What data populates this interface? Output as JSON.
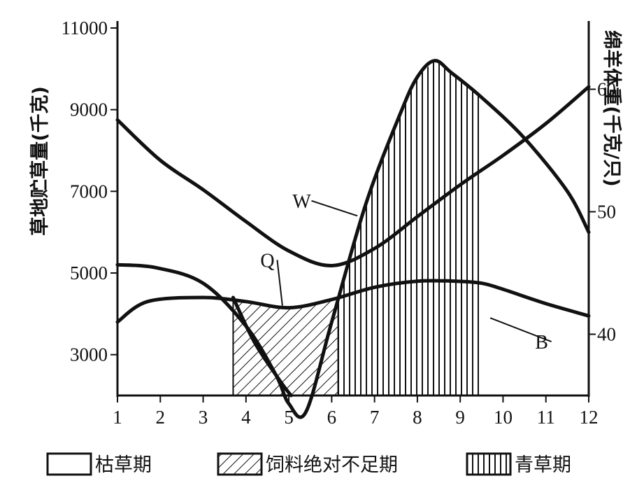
{
  "chart_data": {
    "type": "line",
    "ylabel_left": "草地贮草量(千克)",
    "ylabel_right": "绵羊体重(千克/只)",
    "x_ticks": [
      "1",
      "2",
      "3",
      "4",
      "5",
      "6",
      "7",
      "8",
      "9",
      "10",
      "11",
      "12"
    ],
    "x_range": [
      1,
      12
    ],
    "y_left_ticks": [
      "11000",
      "9000",
      "7000",
      "5000",
      "3000"
    ],
    "y_left_range": [
      2000,
      11000
    ],
    "y_right_ticks": [
      "60",
      "50",
      "40"
    ],
    "y_right_range": [
      35,
      65
    ],
    "series": [
      {
        "name": "W",
        "axis": "left",
        "x": [
          1,
          1.9,
          3,
          4,
          4.7,
          5.0,
          5.4,
          6.0,
          6.8,
          7.6,
          8.0,
          8.4,
          8.8,
          9.5,
          10.5,
          11.5,
          12
        ],
        "y": [
          5200,
          5130,
          4750,
          3700,
          2500,
          1800,
          1600,
          3800,
          6700,
          8900,
          9800,
          10200,
          9900,
          9300,
          8300,
          7000,
          6000
        ]
      },
      {
        "name": "Q",
        "axis": "left",
        "x": [
          1,
          1.7,
          3,
          4,
          5,
          6,
          7,
          8,
          8.9,
          9.5,
          10,
          11,
          12
        ],
        "y": [
          3800,
          4300,
          4400,
          4300,
          4150,
          4350,
          4650,
          4800,
          4800,
          4750,
          4600,
          4250,
          3950
        ]
      },
      {
        "name": "B",
        "axis": "right",
        "x": [
          1,
          2,
          3,
          4,
          5,
          6,
          7,
          8,
          9,
          10,
          11,
          12
        ],
        "y": [
          57.5,
          54.2,
          51.8,
          49.2,
          46.8,
          45.6,
          47.0,
          49.6,
          52.2,
          54.6,
          57.2,
          60.2
        ]
      },
      {
        "name": "",
        "axis": "left",
        "x": [
          3.7,
          4.2,
          4.8,
          5.05
        ],
        "y": [
          4400,
          3300,
          2350,
          2000
        ]
      }
    ],
    "bands": [
      {
        "label": "枯草期",
        "pattern": "none"
      },
      {
        "label": "饲料绝对不足期",
        "pattern": "diagonal",
        "x_start": 3.7,
        "x_end": 6.15
      },
      {
        "label": "青草期",
        "pattern": "vertical",
        "x_start": 6.15,
        "x_end": 9.45
      }
    ],
    "annotations": [
      {
        "text": "W",
        "x": 5.3,
        "y": 6700,
        "target_x": 6.6,
        "target_y": 6400
      },
      {
        "text": "Q",
        "x": 4.5,
        "y": 5250,
        "target_x": 4.85,
        "target_y": 4200
      },
      {
        "text": "B",
        "x": 10.9,
        "y": 3250,
        "target_x": 9.7,
        "target_y": 3900
      }
    ],
    "grid": false,
    "legend_position": "bottom"
  }
}
